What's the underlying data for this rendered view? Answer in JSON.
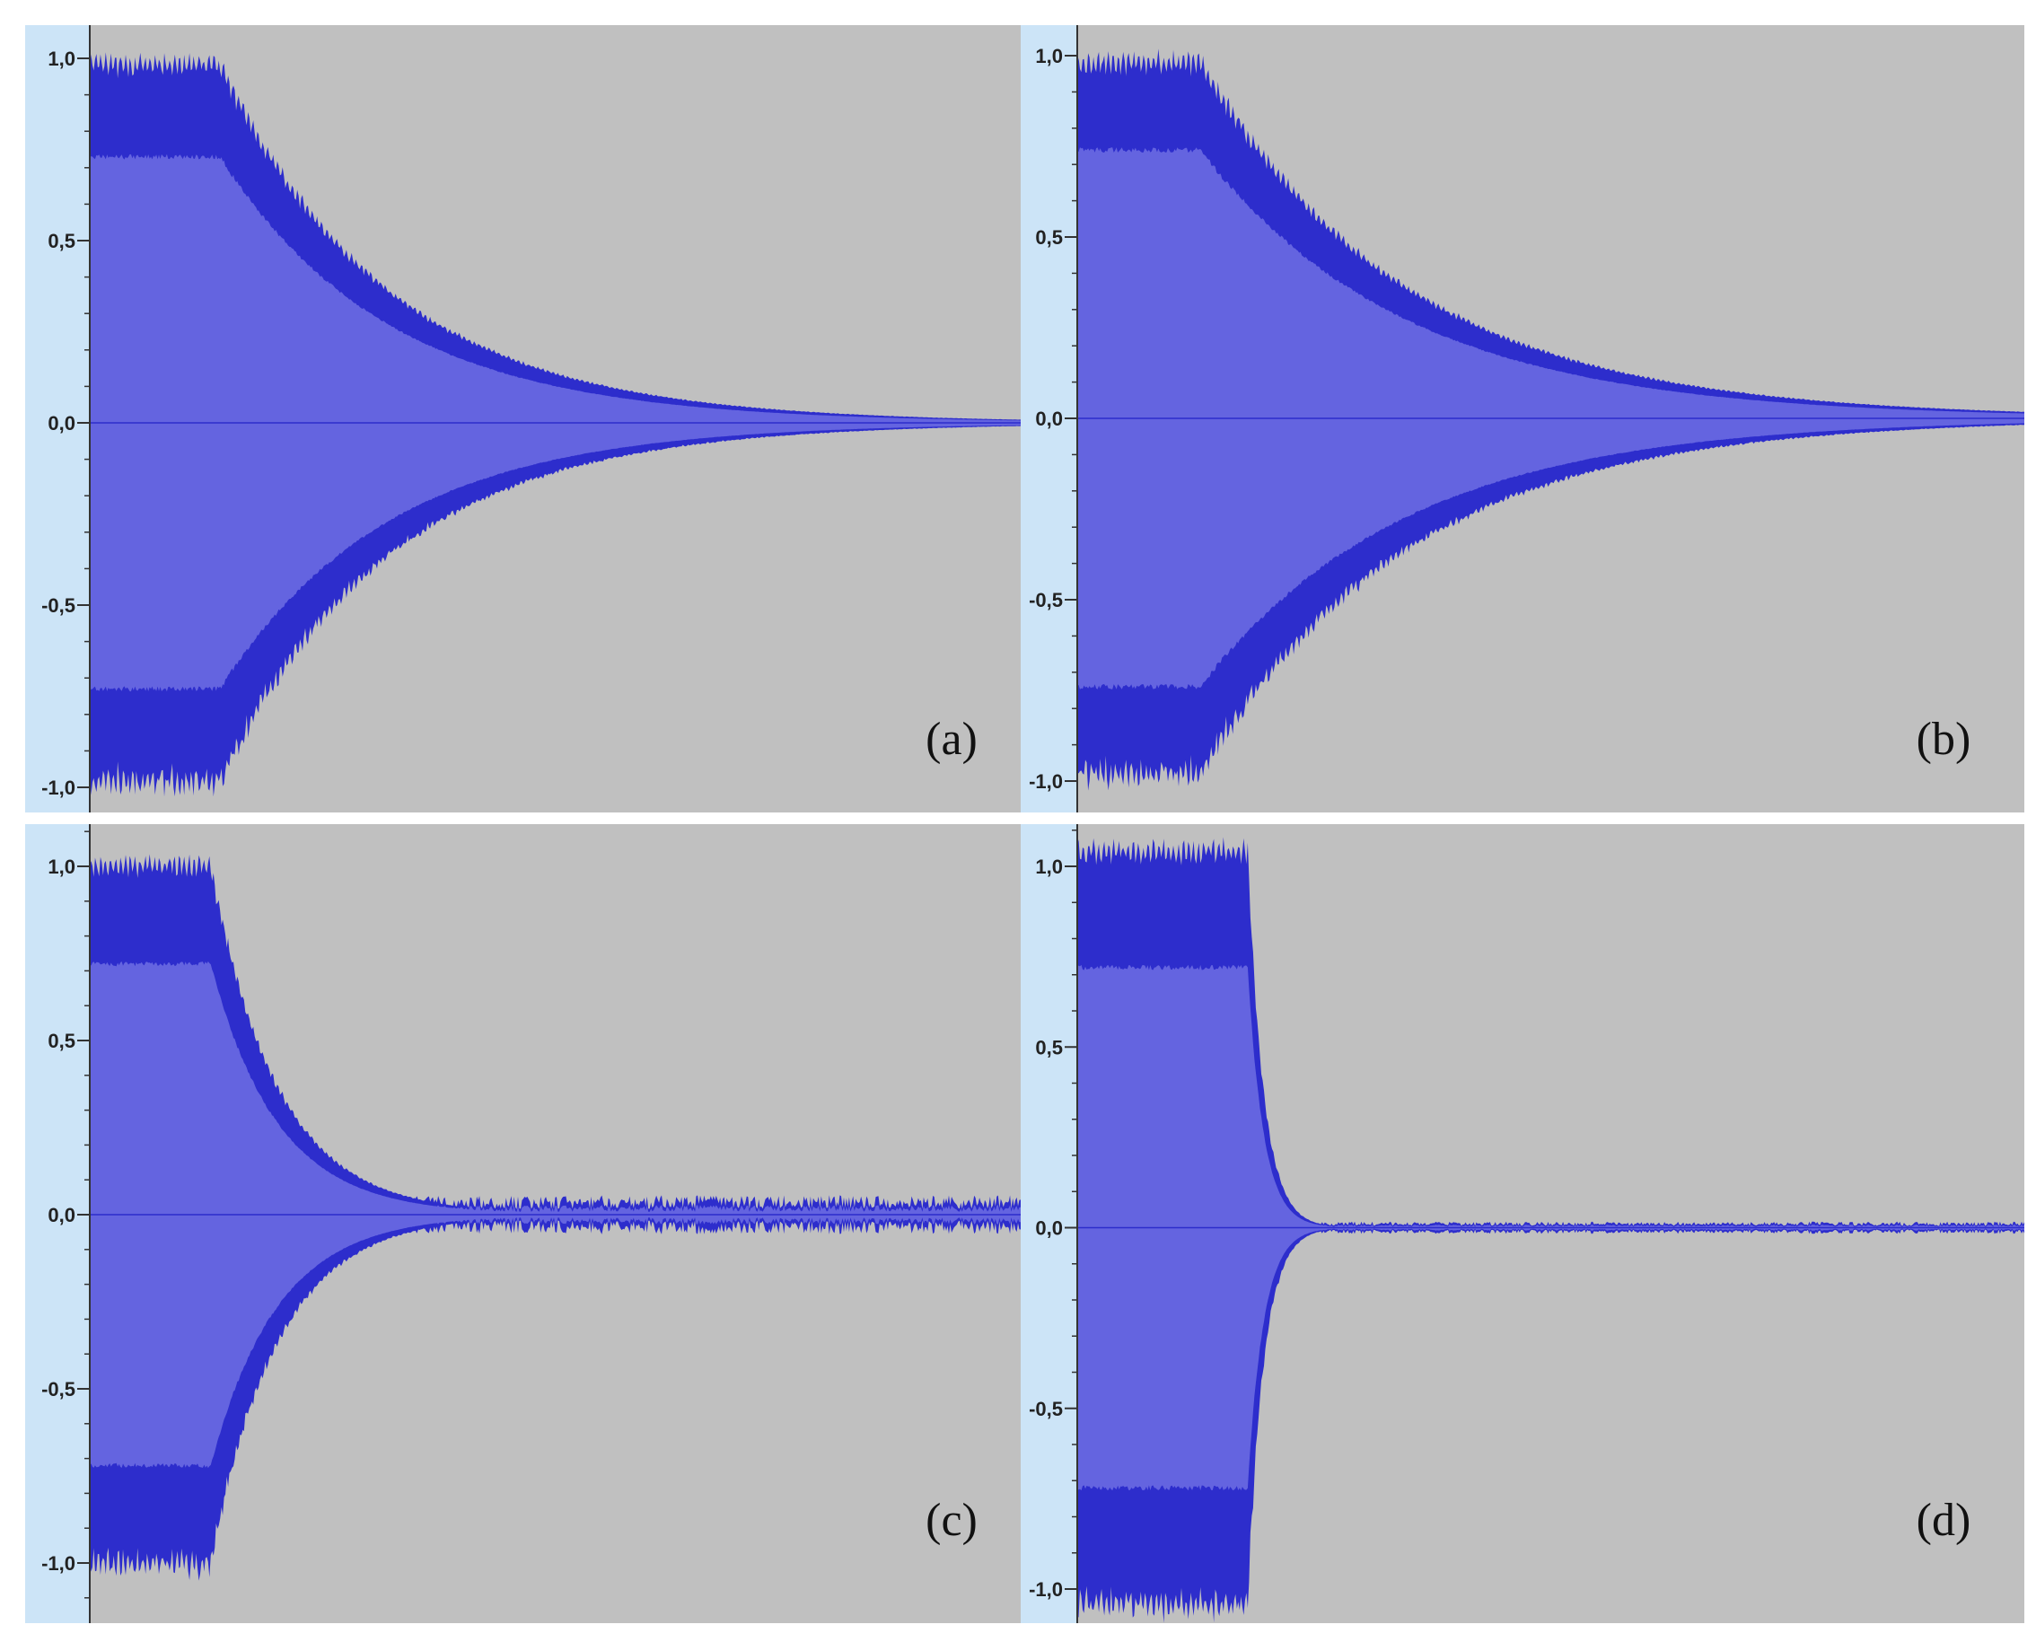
{
  "colors": {
    "background": "#c0c0c0",
    "ruler": "#cce4f7",
    "waveform_rms": "#6464e0",
    "waveform_peak": "#2d2dcc",
    "axis": "#333333"
  },
  "chart_data": [
    {
      "type": "area",
      "panel": "(a)",
      "ylim": [
        -1.0,
        1.0
      ],
      "yticks": [
        "1,0",
        "0,5",
        "0,0",
        "-0,5",
        "-1,0"
      ],
      "xlim": [
        0,
        1
      ],
      "profile": {
        "hold_until": 0.14,
        "peak": 0.98,
        "rms": 0.73,
        "decay": "exponential",
        "decay_rate": 5.5,
        "tail_noise": 0.0
      }
    },
    {
      "type": "area",
      "panel": "(b)",
      "ylim": [
        -1.0,
        1.0
      ],
      "yticks": [
        "1,0",
        "0,5",
        "0,0",
        "-0,5",
        "-1,0"
      ],
      "xlim": [
        0,
        1
      ],
      "profile": {
        "hold_until": 0.13,
        "peak": 0.98,
        "rms": 0.74,
        "decay": "exponential",
        "decay_rate": 4.6,
        "tail_noise": 0.015
      }
    },
    {
      "type": "area",
      "panel": "(c)",
      "ylim": [
        -1.0,
        1.0
      ],
      "yticks": [
        "1,0",
        "0,5",
        "0,0",
        "-0,5",
        "-1,0"
      ],
      "xlim": [
        0,
        1
      ],
      "profile": {
        "hold_until": 0.13,
        "peak": 1.0,
        "rms": 0.72,
        "decay": "exponential",
        "decay_rate": 14.0,
        "tail_noise": 0.04
      }
    },
    {
      "type": "area",
      "panel": "(d)",
      "ylim": [
        -1.0,
        1.0
      ],
      "yticks": [
        "1,0",
        "0,5",
        "0,0",
        "-0,5",
        "-1,0"
      ],
      "xlim": [
        0,
        1
      ],
      "profile": {
        "hold_until": 0.18,
        "peak": 1.04,
        "rms": 0.72,
        "decay": "abrupt",
        "decay_rate": 60.0,
        "tail_noise": 0.012
      }
    }
  ]
}
